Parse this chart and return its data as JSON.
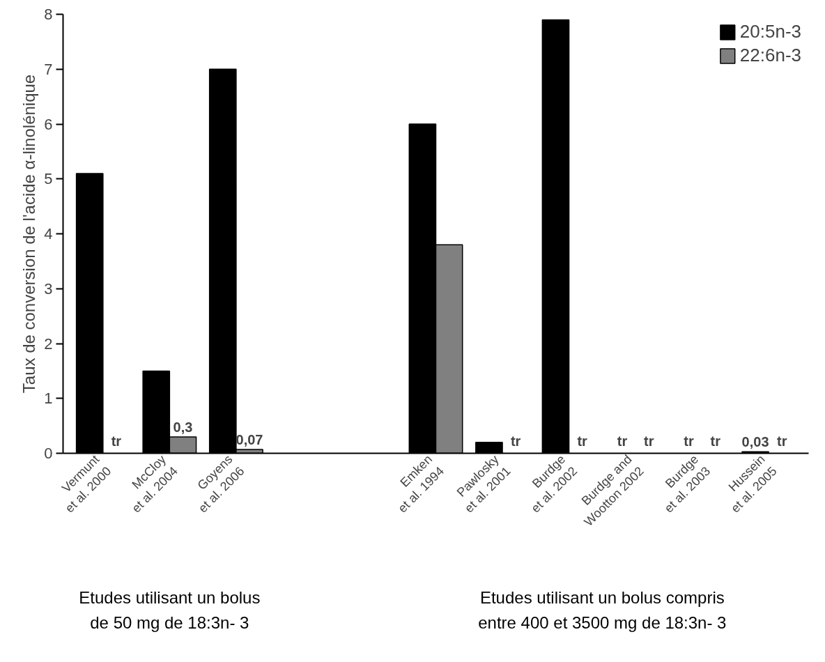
{
  "chart_data": {
    "type": "bar",
    "ylabel": "Taux de conversion de l'acide α-linolénique",
    "categories": [
      "Vermunt\net al. 2000",
      "McCloy\net al. 2004",
      "Goyens\net al. 2006",
      null,
      null,
      "Emken\net al. 1994",
      "Pawlosky\net al. 2001",
      "Burdge\net al. 2002",
      "Burdge and\nWootton 2002",
      "Burdge\net al. 2003",
      "Hussein\net al. 2005"
    ],
    "series": [
      {
        "name": "20:5n-3",
        "color": "#000000",
        "values": [
          5.1,
          1.5,
          7.0,
          null,
          null,
          6.0,
          0.2,
          7.9,
          null,
          null,
          0.03
        ],
        "value_labels": [
          null,
          null,
          null,
          null,
          null,
          null,
          null,
          null,
          "tr",
          "tr",
          "0,03"
        ]
      },
      {
        "name": "22:6n-3",
        "color": "#808080",
        "values": [
          null,
          0.3,
          0.07,
          null,
          null,
          3.8,
          null,
          null,
          null,
          null,
          null
        ],
        "value_labels": [
          "tr",
          "0,3",
          "0,07",
          null,
          null,
          null,
          "tr",
          "tr",
          "tr",
          "tr",
          "tr"
        ]
      }
    ],
    "ylim": [
      0,
      8
    ],
    "yticks": [
      0,
      1,
      2,
      3,
      4,
      5,
      6,
      7,
      8
    ],
    "grid": false,
    "legend": "top right",
    "annotations": [
      "Etudes utilisant un bolus\nde 50 mg de 18:3n- 3",
      "Etudes utilisant un bolus compris\nentre 400 et 3500 mg de 18:3n- 3"
    ]
  }
}
